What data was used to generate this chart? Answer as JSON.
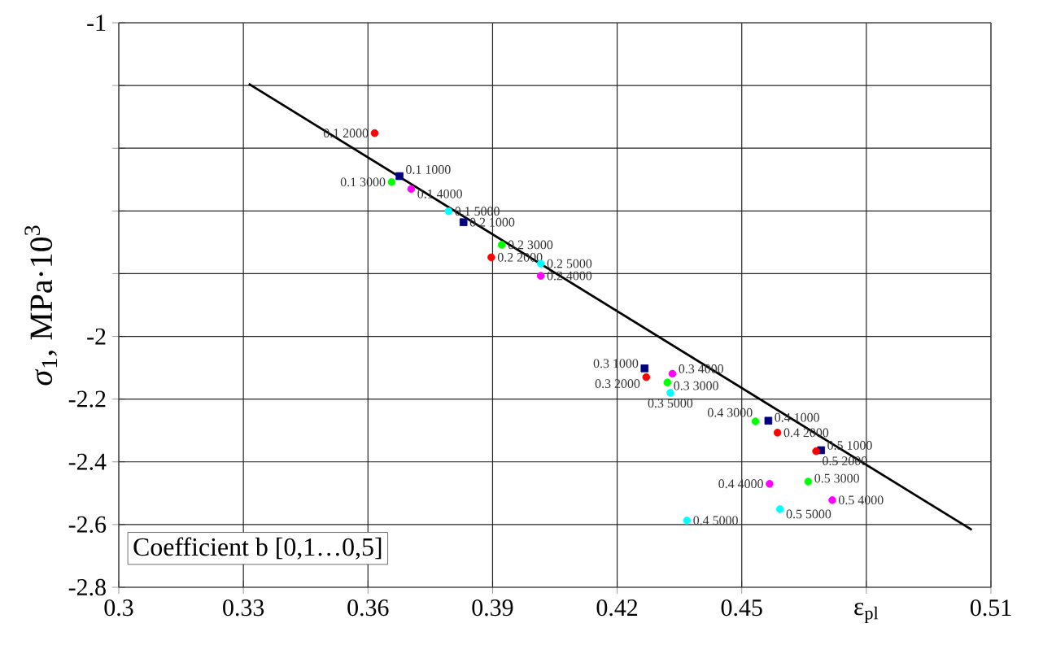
{
  "chart_data": {
    "type": "scatter",
    "ylabel": "*σ*$_{1}$, MPa·10$^{3}$",
    "xlabel": "ε$_{pl}$",
    "xlim": [
      0.3,
      0.51
    ],
    "ylim": [
      -2.8,
      -1
    ],
    "xticks": [
      0.3,
      0.33,
      0.36,
      0.39,
      0.42,
      0.45,
      {
        "value": 0.48,
        "label": null
      },
      0.51
    ],
    "yticks": [
      -2.8,
      -2.6,
      -2.4,
      -2.2,
      -2,
      {
        "value": -1.8,
        "label": null
      },
      {
        "value": -1.6,
        "label": null
      },
      {
        "value": -1.4,
        "label": null
      },
      {
        "value": -1.2,
        "label": null
      },
      -1
    ],
    "grid": true,
    "marker": "circle",
    "series": [
      {
        "color": "#000080",
        "marker": "square",
        "x": [
          0.3676,
          0.383,
          0.4266,
          0.4564,
          0.4691
        ],
        "values": [
          -1.489,
          -1.636,
          -2.102,
          -2.269,
          -2.363
        ]
      },
      {
        "color": "#ff0000",
        "x": [
          0.3616,
          0.3897,
          0.427,
          0.4586,
          0.4679
        ],
        "values": [
          -1.352,
          -1.748,
          -2.13,
          -2.307,
          -2.366
        ]
      },
      {
        "color": "#00ff00",
        "x": [
          0.3657,
          0.3922,
          0.4321,
          0.4533,
          0.466
        ],
        "values": [
          -1.508,
          -1.708,
          -2.147,
          -2.271,
          -2.463
        ]
      },
      {
        "color": "#ff00ff",
        "x": [
          0.3704,
          0.4016,
          0.4333,
          0.4567,
          0.4718
        ],
        "values": [
          -1.53,
          -1.807,
          -2.119,
          -2.47,
          -2.522
        ]
      },
      {
        "color": "#00ffff",
        "x": [
          0.3794,
          0.4016,
          0.4328,
          0.4368,
          0.4592
        ],
        "values": [
          -1.601,
          -1.768,
          -2.18,
          -2.587,
          -2.551
        ]
      },
      {
        "type": "line",
        "color": "#000000",
        "marker": "none",
        "x": [
          0.3313,
          0.5054
        ],
        "values": [
          -1.195,
          -2.617
        ]
      }
    ],
    "annotations": [
      {
        "text": "0.1 1000",
        "x": 0.3676,
        "y": -1.489
      },
      {
        "text": "0.1 2000",
        "x": 0.3616,
        "y": -1.352
      },
      {
        "text": "0.1 3000",
        "x": 0.3657,
        "y": -1.508
      },
      {
        "text": "0.1 4000",
        "x": 0.3704,
        "y": -1.53
      },
      {
        "text": "0.1 5000",
        "x": 0.3794,
        "y": -1.601
      },
      {
        "text": "0.2 1000",
        "x": 0.383,
        "y": -1.636
      },
      {
        "text": "0.2 2000",
        "x": 0.3897,
        "y": -1.748
      },
      {
        "text": "0.2 3000",
        "x": 0.3922,
        "y": -1.708
      },
      {
        "text": "0.2 4000",
        "x": 0.4016,
        "y": -1.807
      },
      {
        "text": "0.2 5000",
        "x": 0.4016,
        "y": -1.768
      },
      {
        "text": "0.3 1000",
        "x": 0.4266,
        "y": -2.102
      },
      {
        "text": "0.3 2000",
        "x": 0.427,
        "y": -2.13
      },
      {
        "text": "0.3 3000",
        "x": 0.4321,
        "y": -2.147
      },
      {
        "text": "0.3 4000",
        "x": 0.4333,
        "y": -2.119
      },
      {
        "text": "0.3 5000",
        "x": 0.4328,
        "y": -2.18
      },
      {
        "text": "0.4 1000",
        "x": 0.4564,
        "y": -2.269
      },
      {
        "text": "0.4 2000",
        "x": 0.4586,
        "y": -2.307
      },
      {
        "text": "0.4 3000",
        "x": 0.4533,
        "y": -2.271
      },
      {
        "text": "0.4 4000",
        "x": 0.4567,
        "y": -2.47
      },
      {
        "text": "0.4 5000",
        "x": 0.4368,
        "y": -2.587
      },
      {
        "text": "0.5 1000",
        "x": 0.4691,
        "y": -2.363
      },
      {
        "text": "0.5 2000",
        "x": 0.4679,
        "y": -2.366
      },
      {
        "text": "0.5 3000",
        "x": 0.466,
        "y": -2.463
      },
      {
        "text": "0.5 4000",
        "x": 0.4718,
        "y": -2.522
      },
      {
        "text": "0.5 5000",
        "x": 0.4592,
        "y": -2.551
      },
      "Coefficient b [0,1…0,5]"
    ]
  }
}
